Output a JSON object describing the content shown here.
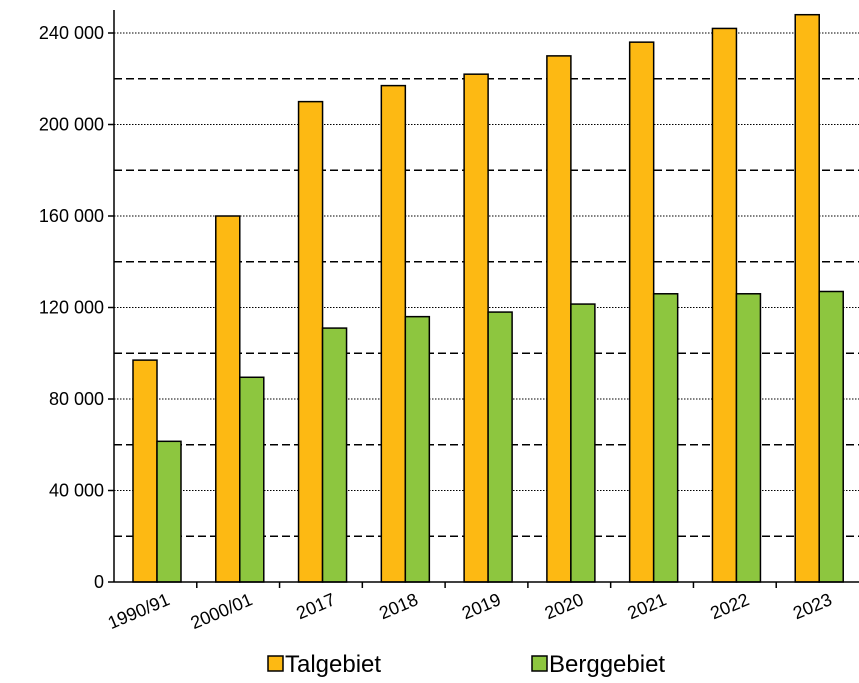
{
  "chart_data": {
    "type": "bar",
    "categories": [
      "1990/91",
      "2000/01",
      "2017",
      "2018",
      "2019",
      "2020",
      "2021",
      "2022",
      "2023"
    ],
    "series": [
      {
        "name": "Talgebiet",
        "color": "#FDB913",
        "values": [
          97000,
          160000,
          210000,
          217000,
          222000,
          230000,
          236000,
          242000,
          248000
        ]
      },
      {
        "name": "Berggebiet",
        "color": "#8DC63F",
        "values": [
          61500,
          89500,
          111000,
          116000,
          118000,
          121500,
          126000,
          126000,
          127000
        ]
      }
    ],
    "yticks": [
      {
        "value": 0,
        "label": "0"
      },
      {
        "value": 40000,
        "label": "40 000"
      },
      {
        "value": 80000,
        "label": "80 000"
      },
      {
        "value": 120000,
        "label": "120 000"
      },
      {
        "value": 160000,
        "label": "160 000"
      },
      {
        "value": 200000,
        "label": "200 000"
      },
      {
        "value": 240000,
        "label": "240 000"
      }
    ],
    "ylim": [
      0,
      240000
    ],
    "grid": {
      "major": "dotted",
      "minor": "dashed",
      "minor_step": 20000
    },
    "legend": "bottom"
  }
}
